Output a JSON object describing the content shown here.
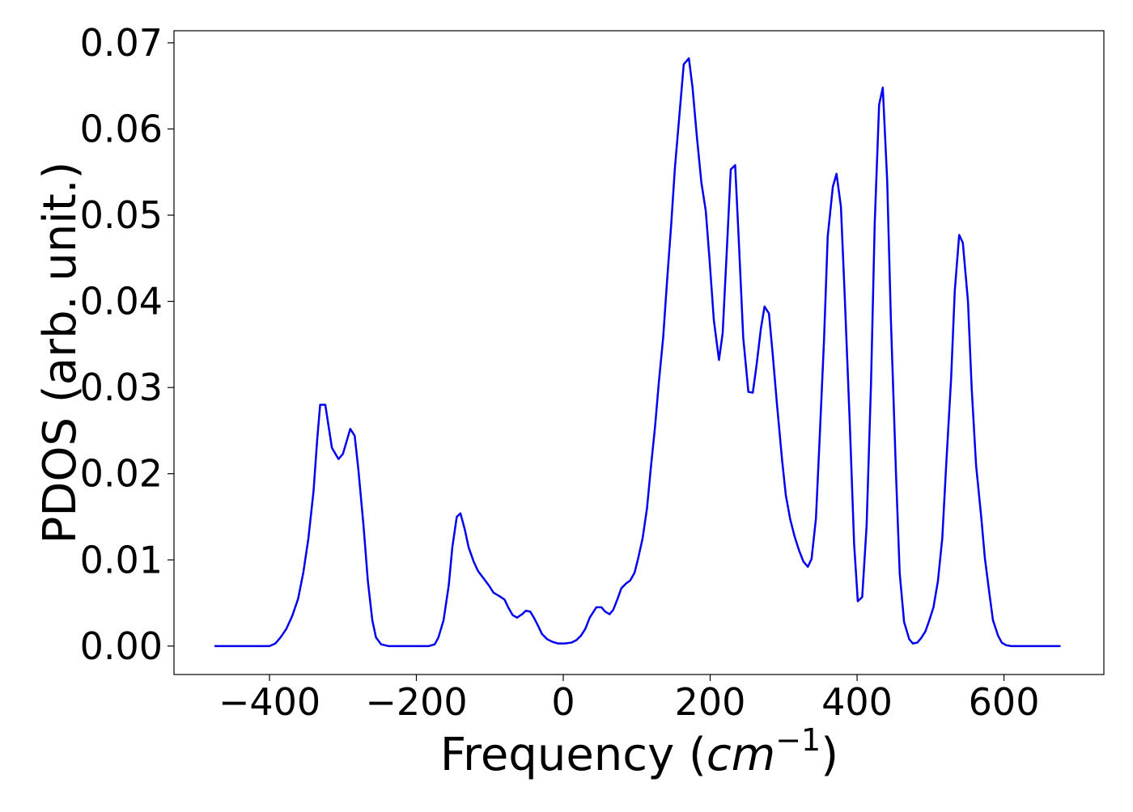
{
  "chart_data": {
    "type": "line",
    "ylabel": "PDOS (arb. unit.)",
    "xlabel": [
      "Frequency (",
      "cm",
      "−1",
      ")"
    ],
    "xlim": [
      -530,
      736
    ],
    "ylim": [
      -0.0033,
      0.0714
    ],
    "xticks": [
      {
        "value": -400,
        "label": "−400"
      },
      {
        "value": -200,
        "label": "−200"
      },
      0,
      200,
      400,
      600
    ],
    "yticks": [
      {
        "value": 0,
        "label": "0.00"
      },
      0.01,
      0.02,
      0.03,
      0.04,
      0.05,
      0.06,
      0.07
    ],
    "series": [
      {
        "color": "#0000ee",
        "x": [
          -475,
          -400,
          -392,
          -385,
          -377,
          -369,
          -361,
          -354,
          -347,
          -340,
          -335,
          -331,
          -324,
          -315,
          -306,
          -300,
          -290,
          -284,
          -279,
          -272,
          -266,
          -260,
          -255,
          -248,
          -238,
          -183,
          -175,
          -170,
          -163,
          -156,
          -151,
          -145,
          -140,
          -134,
          -129,
          -122,
          -116,
          -108,
          -101,
          -95,
          -87,
          -80,
          -75,
          -69,
          -63,
          -56,
          -51,
          -45,
          -40,
          -34,
          -29,
          -22,
          -15,
          -7,
          2,
          11,
          18,
          24,
          30,
          36,
          42,
          45,
          52,
          57,
          63,
          68,
          74,
          79,
          86,
          91,
          97,
          102,
          108,
          114,
          119,
          125,
          130,
          136,
          141,
          147,
          152,
          159,
          164,
          171,
          176,
          182,
          188,
          194,
          199,
          205,
          212,
          217,
          223,
          228,
          234,
          239,
          245,
          252,
          258,
          263,
          269,
          274,
          280,
          285,
          291,
          298,
          303,
          309,
          315,
          321,
          327,
          333,
          338,
          344,
          349,
          355,
          360,
          367,
          372,
          378,
          383,
          390,
          396,
          401,
          407,
          413,
          419,
          424,
          430,
          435,
          441,
          446,
          453,
          458,
          464,
          471,
          476,
          482,
          487,
          493,
          498,
          504,
          510,
          516,
          521,
          528,
          533,
          539,
          544,
          551,
          556,
          562,
          569,
          574,
          580,
          585,
          592,
          597,
          603,
          610,
          677
        ],
        "values": [
          0,
          0,
          0.0003,
          0.001,
          0.002,
          0.0035,
          0.0055,
          0.0085,
          0.0125,
          0.018,
          0.024,
          0.028,
          0.028,
          0.023,
          0.0217,
          0.0223,
          0.0252,
          0.0244,
          0.0205,
          0.014,
          0.0075,
          0.003,
          0.001,
          0.0002,
          0,
          0,
          0.0002,
          0.001,
          0.003,
          0.007,
          0.0115,
          0.015,
          0.0154,
          0.0135,
          0.0115,
          0.0098,
          0.0087,
          0.0078,
          0.007,
          0.0062,
          0.0058,
          0.0054,
          0.0045,
          0.0036,
          0.0033,
          0.0037,
          0.0041,
          0.004,
          0.0033,
          0.0023,
          0.0014,
          0.0008,
          0.0005,
          0.0003,
          0.0003,
          0.0004,
          0.0007,
          0.0012,
          0.002,
          0.0033,
          0.0041,
          0.0045,
          0.0045,
          0.004,
          0.0037,
          0.0042,
          0.0055,
          0.0067,
          0.0073,
          0.0076,
          0.0085,
          0.0102,
          0.0125,
          0.016,
          0.0205,
          0.0255,
          0.0305,
          0.0358,
          0.042,
          0.049,
          0.0555,
          0.0625,
          0.0675,
          0.0682,
          0.0648,
          0.059,
          0.0538,
          0.0505,
          0.045,
          0.0378,
          0.0332,
          0.0363,
          0.0465,
          0.0553,
          0.0558,
          0.047,
          0.0358,
          0.0295,
          0.0294,
          0.0325,
          0.0368,
          0.0394,
          0.0386,
          0.034,
          0.028,
          0.0215,
          0.0175,
          0.0147,
          0.0127,
          0.0111,
          0.0098,
          0.0092,
          0.0101,
          0.0148,
          0.024,
          0.0355,
          0.0475,
          0.0533,
          0.0548,
          0.051,
          0.041,
          0.026,
          0.0118,
          0.0052,
          0.0057,
          0.014,
          0.0305,
          0.049,
          0.0628,
          0.0648,
          0.054,
          0.038,
          0.02,
          0.0085,
          0.0028,
          0.0008,
          0.0003,
          0.0004,
          0.0009,
          0.0017,
          0.0029,
          0.0045,
          0.0075,
          0.0125,
          0.0205,
          0.031,
          0.0412,
          0.0477,
          0.0468,
          0.04,
          0.03,
          0.021,
          0.015,
          0.0102,
          0.0062,
          0.003,
          0.0012,
          0.0004,
          0.0001,
          0,
          0
        ]
      }
    ]
  }
}
